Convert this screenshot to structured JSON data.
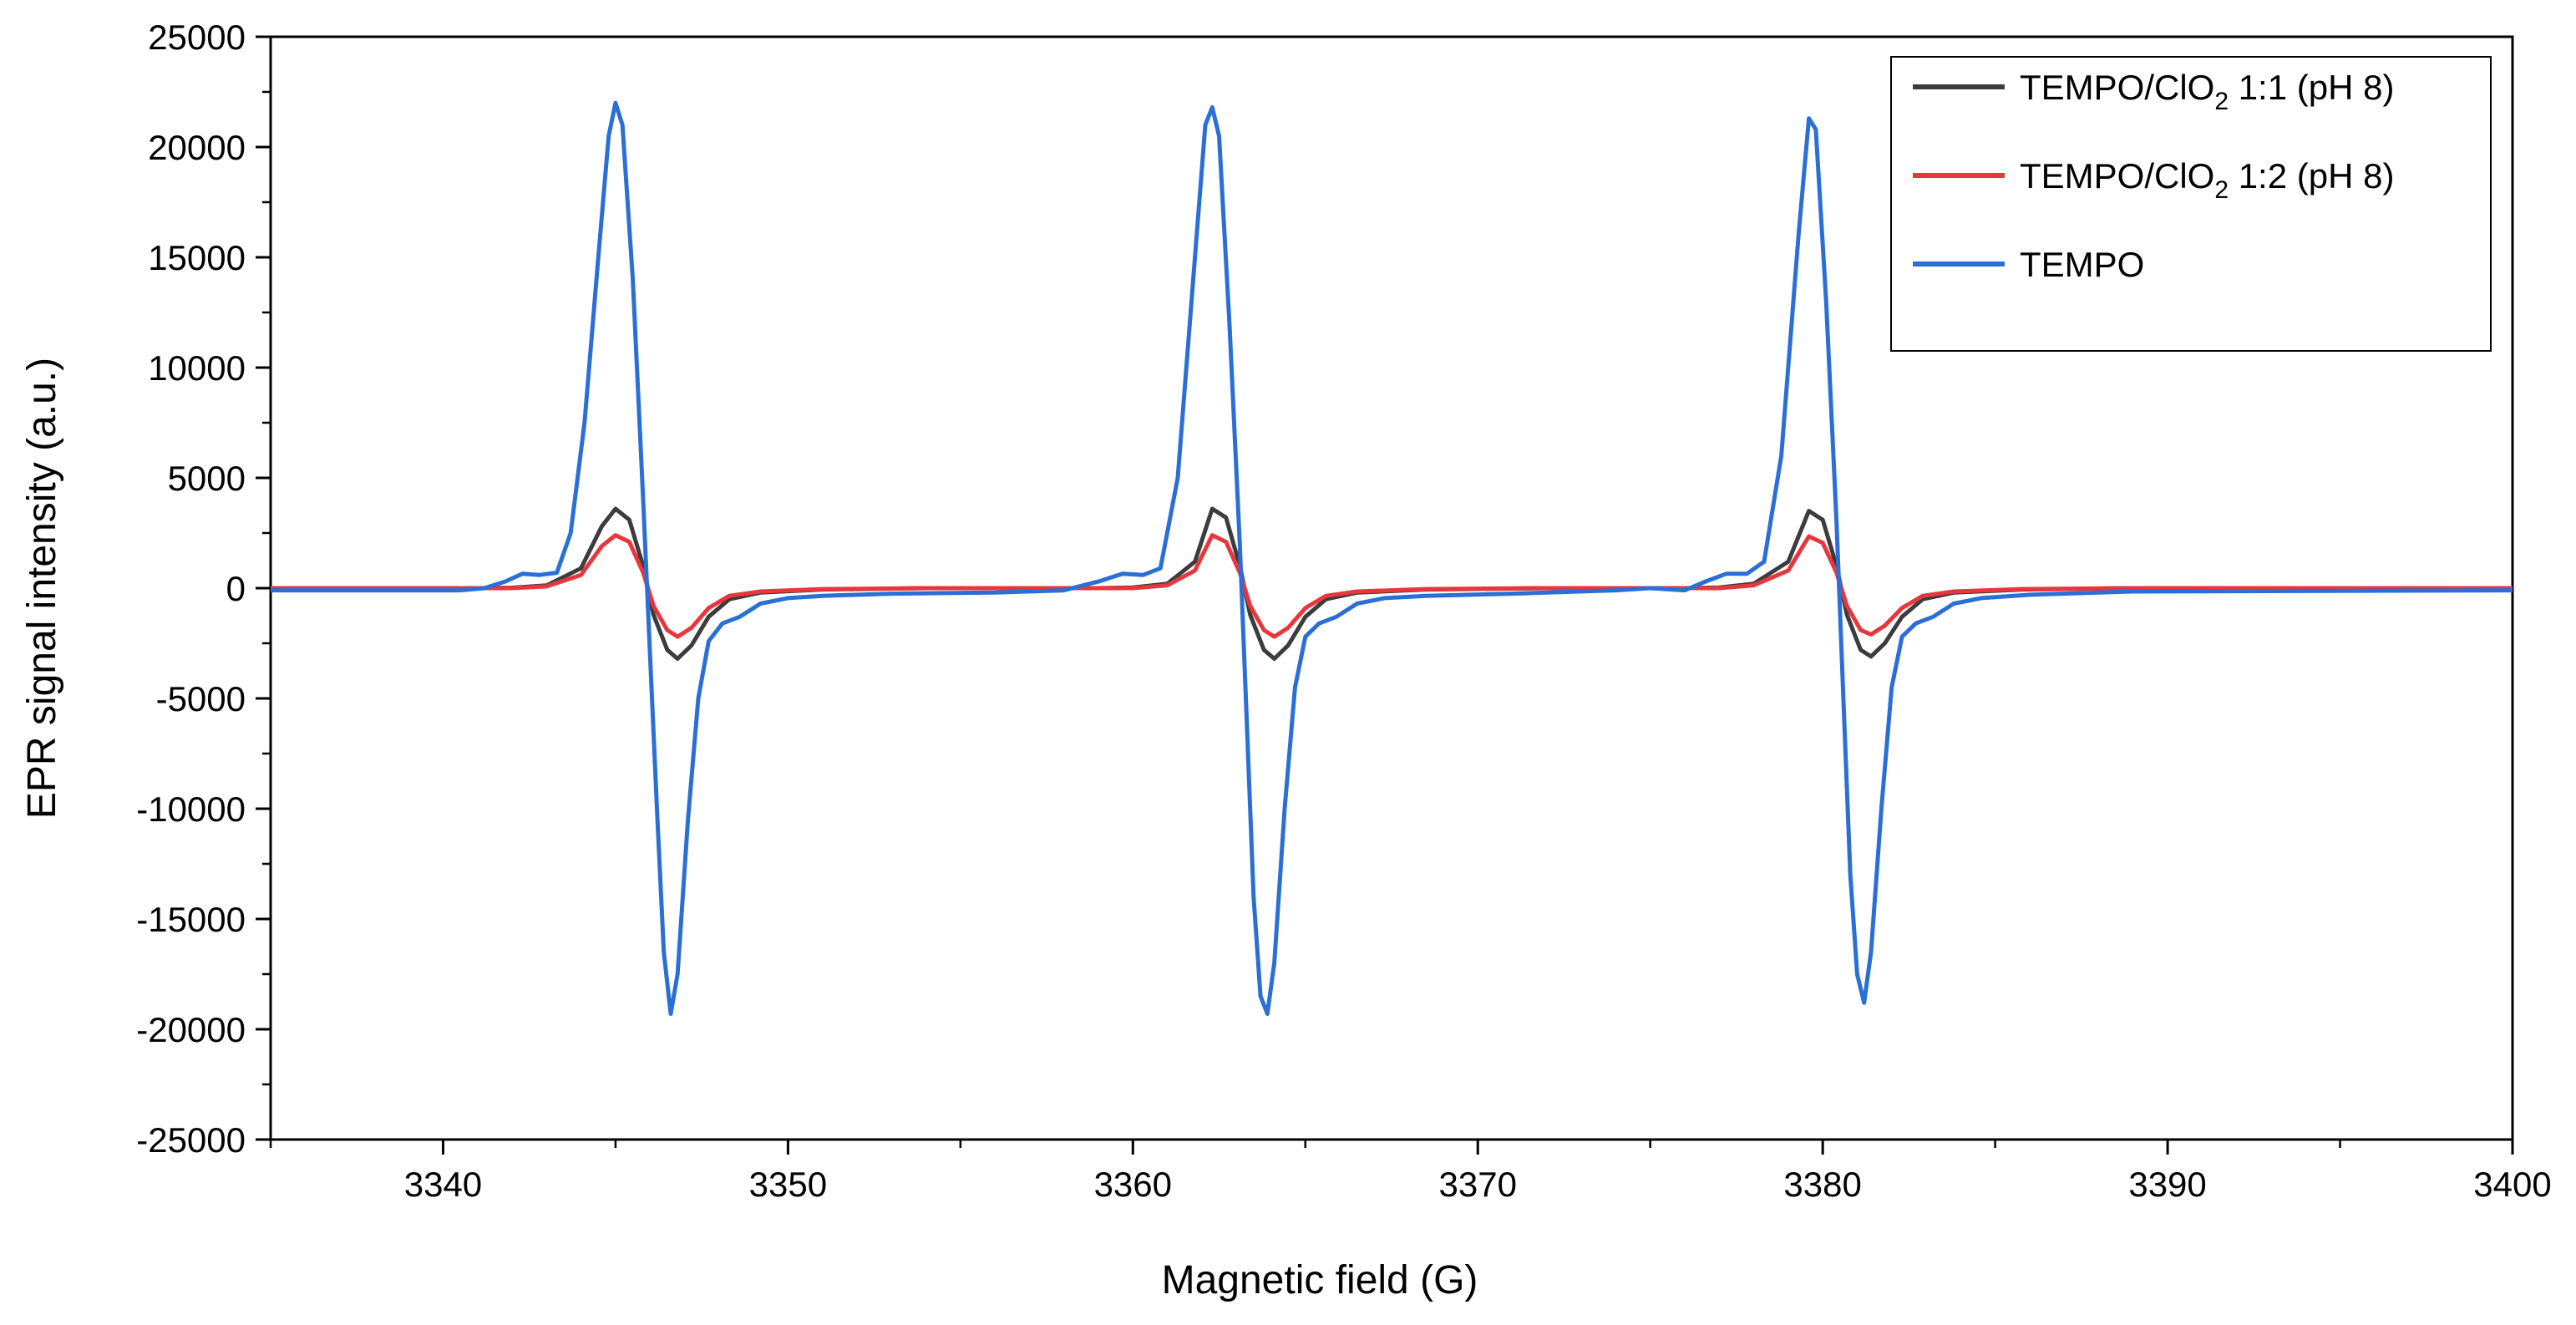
{
  "chart_data": {
    "type": "line",
    "title": "",
    "xlabel": "Magnetic field (G)",
    "ylabel": "EPR signal intensity (a.u.)",
    "xlim": [
      3335,
      3400
    ],
    "ylim": [
      -25000,
      25000
    ],
    "x_ticks": [
      3340,
      3350,
      3360,
      3370,
      3380,
      3390,
      3400
    ],
    "y_ticks": [
      -25000,
      -20000,
      -15000,
      -10000,
      -5000,
      0,
      5000,
      10000,
      15000,
      20000,
      25000
    ],
    "x_minor_step": 5,
    "y_minor_step": 2500,
    "grid": false,
    "legend_position": "top-right",
    "series": [
      {
        "name": "TEMPO/ClO2 1:1 (pH 8)",
        "legend_label": {
          "main": "TEMPO/ClO",
          "sub": "2",
          "rest": " 1:1 (pH 8)"
        },
        "color": "#3c3c3c",
        "points": [
          [
            3335,
            0
          ],
          [
            3341,
            0
          ],
          [
            3342,
            20
          ],
          [
            3343,
            120
          ],
          [
            3344,
            900
          ],
          [
            3344.6,
            2800
          ],
          [
            3345,
            3600
          ],
          [
            3345.4,
            3100
          ],
          [
            3345.8,
            1000
          ],
          [
            3346.1,
            -1200
          ],
          [
            3346.5,
            -2800
          ],
          [
            3346.8,
            -3200
          ],
          [
            3347.2,
            -2600
          ],
          [
            3347.7,
            -1300
          ],
          [
            3348.3,
            -500
          ],
          [
            3349.2,
            -200
          ],
          [
            3351,
            -60
          ],
          [
            3354,
            0
          ],
          [
            3359,
            0
          ],
          [
            3360,
            30
          ],
          [
            3361,
            200
          ],
          [
            3361.8,
            1200
          ],
          [
            3362.3,
            3600
          ],
          [
            3362.7,
            3200
          ],
          [
            3363.1,
            1000
          ],
          [
            3363.4,
            -1200
          ],
          [
            3363.8,
            -2800
          ],
          [
            3364.1,
            -3200
          ],
          [
            3364.5,
            -2600
          ],
          [
            3365,
            -1300
          ],
          [
            3365.6,
            -500
          ],
          [
            3366.5,
            -200
          ],
          [
            3368.5,
            -60
          ],
          [
            3372,
            0
          ],
          [
            3376,
            0
          ],
          [
            3377,
            30
          ],
          [
            3378,
            200
          ],
          [
            3379,
            1200
          ],
          [
            3379.6,
            3500
          ],
          [
            3380,
            3100
          ],
          [
            3380.4,
            1000
          ],
          [
            3380.7,
            -1200
          ],
          [
            3381.1,
            -2800
          ],
          [
            3381.4,
            -3100
          ],
          [
            3381.8,
            -2500
          ],
          [
            3382.3,
            -1300
          ],
          [
            3382.9,
            -500
          ],
          [
            3383.8,
            -200
          ],
          [
            3385.8,
            -60
          ],
          [
            3389,
            0
          ],
          [
            3400,
            0
          ]
        ]
      },
      {
        "name": "TEMPO/ClO2 1:2 (pH 8)",
        "legend_label": {
          "main": "TEMPO/ClO",
          "sub": "2",
          "rest": " 1:2 (pH 8)"
        },
        "color": "#e8373c",
        "points": [
          [
            3335,
            0
          ],
          [
            3342,
            0
          ],
          [
            3343,
            80
          ],
          [
            3344,
            600
          ],
          [
            3344.6,
            1900
          ],
          [
            3345,
            2400
          ],
          [
            3345.4,
            2100
          ],
          [
            3345.8,
            700
          ],
          [
            3346.1,
            -800
          ],
          [
            3346.5,
            -1900
          ],
          [
            3346.8,
            -2200
          ],
          [
            3347.2,
            -1800
          ],
          [
            3347.7,
            -900
          ],
          [
            3348.3,
            -350
          ],
          [
            3349.2,
            -150
          ],
          [
            3351,
            -40
          ],
          [
            3354,
            0
          ],
          [
            3360,
            0
          ],
          [
            3361,
            130
          ],
          [
            3361.8,
            800
          ],
          [
            3362.3,
            2400
          ],
          [
            3362.7,
            2100
          ],
          [
            3363.1,
            700
          ],
          [
            3363.4,
            -800
          ],
          [
            3363.8,
            -1900
          ],
          [
            3364.1,
            -2200
          ],
          [
            3364.5,
            -1800
          ],
          [
            3365,
            -900
          ],
          [
            3365.6,
            -350
          ],
          [
            3366.5,
            -150
          ],
          [
            3368.5,
            -40
          ],
          [
            3372,
            0
          ],
          [
            3377,
            0
          ],
          [
            3378,
            130
          ],
          [
            3379,
            800
          ],
          [
            3379.6,
            2350
          ],
          [
            3380,
            2050
          ],
          [
            3380.4,
            700
          ],
          [
            3380.7,
            -800
          ],
          [
            3381.1,
            -1900
          ],
          [
            3381.4,
            -2100
          ],
          [
            3381.8,
            -1700
          ],
          [
            3382.3,
            -900
          ],
          [
            3382.9,
            -350
          ],
          [
            3383.8,
            -150
          ],
          [
            3385.8,
            -40
          ],
          [
            3389,
            0
          ],
          [
            3400,
            0
          ]
        ]
      },
      {
        "name": "TEMPO",
        "legend_label": {
          "main": "TEMPO",
          "sub": "",
          "rest": ""
        },
        "color": "#2a6fd6",
        "points": [
          [
            3335,
            -100
          ],
          [
            3340.5,
            -100
          ],
          [
            3341.2,
            0
          ],
          [
            3341.8,
            300
          ],
          [
            3342.3,
            650
          ],
          [
            3342.8,
            600
          ],
          [
            3343.3,
            700
          ],
          [
            3343.7,
            2500
          ],
          [
            3344.1,
            7500
          ],
          [
            3344.5,
            15000
          ],
          [
            3344.8,
            20500
          ],
          [
            3345,
            22000
          ],
          [
            3345.2,
            21000
          ],
          [
            3345.5,
            14000
          ],
          [
            3345.8,
            4000
          ],
          [
            3346,
            -3000
          ],
          [
            3346.2,
            -10000
          ],
          [
            3346.4,
            -16500
          ],
          [
            3346.6,
            -19300
          ],
          [
            3346.8,
            -17500
          ],
          [
            3347.1,
            -10500
          ],
          [
            3347.4,
            -5000
          ],
          [
            3347.7,
            -2400
          ],
          [
            3348.1,
            -1600
          ],
          [
            3348.6,
            -1300
          ],
          [
            3349.2,
            -700
          ],
          [
            3350,
            -450
          ],
          [
            3351,
            -350
          ],
          [
            3353,
            -250
          ],
          [
            3356,
            -200
          ],
          [
            3358,
            -100
          ],
          [
            3359,
            300
          ],
          [
            3359.7,
            650
          ],
          [
            3360.3,
            600
          ],
          [
            3360.8,
            900
          ],
          [
            3361.3,
            5000
          ],
          [
            3361.8,
            15000
          ],
          [
            3362.1,
            21000
          ],
          [
            3362.3,
            21800
          ],
          [
            3362.5,
            20500
          ],
          [
            3362.8,
            12000
          ],
          [
            3363.1,
            2000
          ],
          [
            3363.3,
            -6000
          ],
          [
            3363.5,
            -14000
          ],
          [
            3363.7,
            -18500
          ],
          [
            3363.9,
            -19300
          ],
          [
            3364.1,
            -17000
          ],
          [
            3364.4,
            -10000
          ],
          [
            3364.7,
            -4500
          ],
          [
            3365,
            -2200
          ],
          [
            3365.4,
            -1600
          ],
          [
            3365.9,
            -1300
          ],
          [
            3366.5,
            -700
          ],
          [
            3367.3,
            -450
          ],
          [
            3368.5,
            -350
          ],
          [
            3371,
            -250
          ],
          [
            3374,
            -100
          ],
          [
            3375,
            0
          ],
          [
            3376,
            -100
          ],
          [
            3376.6,
            300
          ],
          [
            3377.2,
            650
          ],
          [
            3377.8,
            650
          ],
          [
            3378.3,
            1200
          ],
          [
            3378.8,
            6000
          ],
          [
            3379.3,
            16000
          ],
          [
            3379.6,
            21300
          ],
          [
            3379.8,
            20800
          ],
          [
            3380.1,
            13000
          ],
          [
            3380.4,
            3000
          ],
          [
            3380.6,
            -5000
          ],
          [
            3380.8,
            -13000
          ],
          [
            3381,
            -17500
          ],
          [
            3381.2,
            -18800
          ],
          [
            3381.4,
            -16500
          ],
          [
            3381.7,
            -10000
          ],
          [
            3382,
            -4500
          ],
          [
            3382.3,
            -2200
          ],
          [
            3382.7,
            -1600
          ],
          [
            3383.2,
            -1300
          ],
          [
            3383.8,
            -700
          ],
          [
            3384.6,
            -450
          ],
          [
            3386,
            -300
          ],
          [
            3389,
            -150
          ],
          [
            3400,
            -100
          ]
        ]
      }
    ]
  }
}
